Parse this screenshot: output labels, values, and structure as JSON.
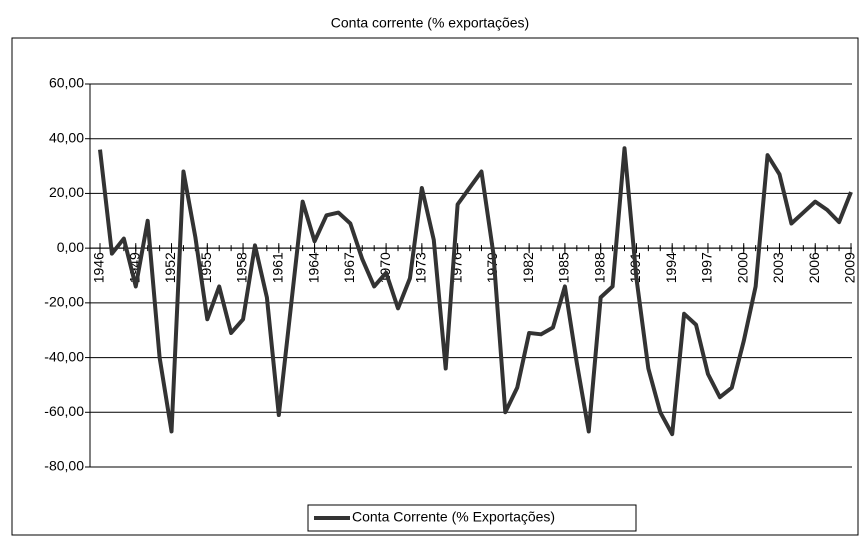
{
  "chart_data": {
    "type": "line",
    "title": "Conta corrente (% exportações)",
    "x": [
      1946,
      1947,
      1948,
      1949,
      1950,
      1951,
      1952,
      1953,
      1954,
      1955,
      1956,
      1957,
      1958,
      1959,
      1960,
      1961,
      1962,
      1963,
      1964,
      1965,
      1966,
      1967,
      1968,
      1969,
      1970,
      1971,
      1972,
      1973,
      1974,
      1975,
      1976,
      1977,
      1978,
      1979,
      1980,
      1981,
      1982,
      1983,
      1984,
      1985,
      1986,
      1987,
      1988,
      1989,
      1990,
      1991,
      1992,
      1993,
      1994,
      1995,
      1996,
      1997,
      1998,
      1999,
      2000,
      2001,
      2002,
      2003,
      2004,
      2005,
      2006,
      2007,
      2008,
      2009
    ],
    "xlim": [
      1946,
      2009
    ],
    "xticks": [
      1946,
      1949,
      1952,
      1955,
      1958,
      1961,
      1964,
      1967,
      1970,
      1973,
      1976,
      1979,
      1982,
      1985,
      1988,
      1991,
      1994,
      1997,
      2000,
      2003,
      2006,
      2009
    ],
    "series": [
      {
        "name": "Conta Corrente (% Exportações)",
        "color": "#333333",
        "values": [
          36,
          -2,
          3.5,
          -14,
          10,
          -40,
          -67,
          28,
          4,
          -26,
          -14,
          -31,
          -26,
          1,
          -18,
          -61,
          -22,
          17,
          2.5,
          12,
          13,
          9,
          -4,
          -14,
          -9,
          -22,
          -11,
          22,
          3,
          -44,
          16,
          22,
          28,
          -2,
          -60,
          -51,
          -31,
          -31.5,
          -29,
          -14,
          -42,
          -67,
          -18,
          -14,
          36.5,
          -11,
          -44,
          -60,
          -68,
          -24,
          -28,
          -46,
          -54.5,
          -51,
          -34,
          -14,
          34,
          27,
          9,
          13,
          17,
          14,
          9.5,
          20.5
        ]
      }
    ],
    "ylim": [
      -80,
      60
    ],
    "yticks": [
      {
        "value": -80,
        "label": "-80,00"
      },
      {
        "value": -60,
        "label": "-60,00"
      },
      {
        "value": -40,
        "label": "-40,00"
      },
      {
        "value": -20,
        "label": "-20,00"
      },
      {
        "value": 0,
        "label": "0,00"
      },
      {
        "value": 20,
        "label": "20,00"
      },
      {
        "value": 40,
        "label": "40,00"
      },
      {
        "value": 60,
        "label": "60,00"
      }
    ],
    "grid": true,
    "legend": "bottom"
  }
}
